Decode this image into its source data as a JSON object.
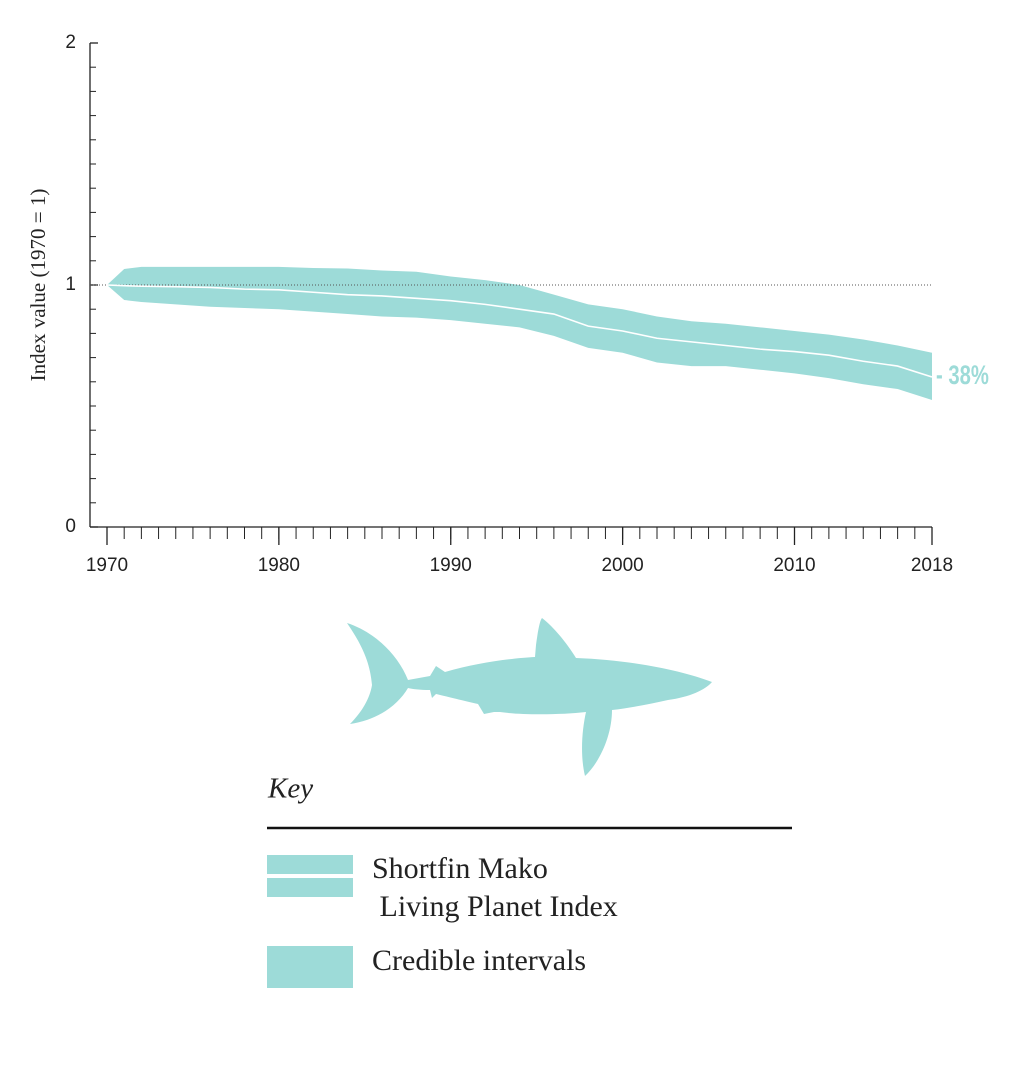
{
  "chart_data": {
    "type": "line_band",
    "y_label": "Index value (1970 = 1)",
    "x": [
      1970,
      1971,
      1972,
      1974,
      1976,
      1978,
      1980,
      1982,
      1984,
      1986,
      1988,
      1990,
      1992,
      1994,
      1996,
      1998,
      2000,
      2002,
      2004,
      2006,
      2008,
      2010,
      2012,
      2014,
      2016,
      2018
    ],
    "series": [
      {
        "name": "Shortfin Mako\n Living Planet Index",
        "color": "#ffffff",
        "values": [
          1.0,
          0.997,
          0.995,
          0.993,
          0.99,
          0.983,
          0.98,
          0.97,
          0.96,
          0.955,
          0.945,
          0.935,
          0.92,
          0.9,
          0.88,
          0.83,
          0.81,
          0.78,
          0.765,
          0.75,
          0.735,
          0.725,
          0.71,
          0.685,
          0.665,
          0.62
        ]
      }
    ],
    "band": {
      "name": "Credible intervals",
      "color": "#9ddbd8",
      "upper": [
        1.0,
        1.066,
        1.075,
        1.075,
        1.075,
        1.075,
        1.075,
        1.07,
        1.068,
        1.06,
        1.055,
        1.035,
        1.02,
        1.0,
        0.96,
        0.92,
        0.9,
        0.87,
        0.85,
        0.84,
        0.825,
        0.81,
        0.795,
        0.775,
        0.75,
        0.72
      ],
      "lower": [
        1.0,
        0.938,
        0.93,
        0.92,
        0.91,
        0.905,
        0.9,
        0.89,
        0.88,
        0.87,
        0.865,
        0.855,
        0.84,
        0.825,
        0.79,
        0.74,
        0.72,
        0.68,
        0.665,
        0.665,
        0.65,
        0.635,
        0.615,
        0.59,
        0.57,
        0.525
      ]
    },
    "xlim": [
      1970,
      2018
    ],
    "ylim": [
      0,
      2
    ],
    "xticks": [
      1970,
      1980,
      1990,
      2000,
      2010,
      2018
    ],
    "yticks": [
      0,
      1,
      2
    ],
    "xminorticks": [
      1970,
      1971,
      1972,
      1973,
      1974,
      1975,
      1976,
      1977,
      1978,
      1979,
      1980,
      1981,
      1982,
      1983,
      1984,
      1985,
      1986,
      1987,
      1988,
      1989,
      1990,
      1991,
      1992,
      1993,
      1994,
      1995,
      1996,
      1997,
      1998,
      1999,
      2000,
      2001,
      2002,
      2003,
      2004,
      2005,
      2006,
      2007,
      2008,
      2009,
      2010,
      2011,
      2012,
      2013,
      2014,
      2015,
      2016,
      2017,
      2018
    ],
    "yminorticks": [
      0.1,
      0.2,
      0.3,
      0.4,
      0.5,
      0.6,
      0.7,
      0.8,
      0.9,
      1.1,
      1.2,
      1.3,
      1.4,
      1.5,
      1.6,
      1.7,
      1.8,
      1.9
    ],
    "reference_line": 1,
    "end_label": "- 38%",
    "legend_title": "Key"
  }
}
